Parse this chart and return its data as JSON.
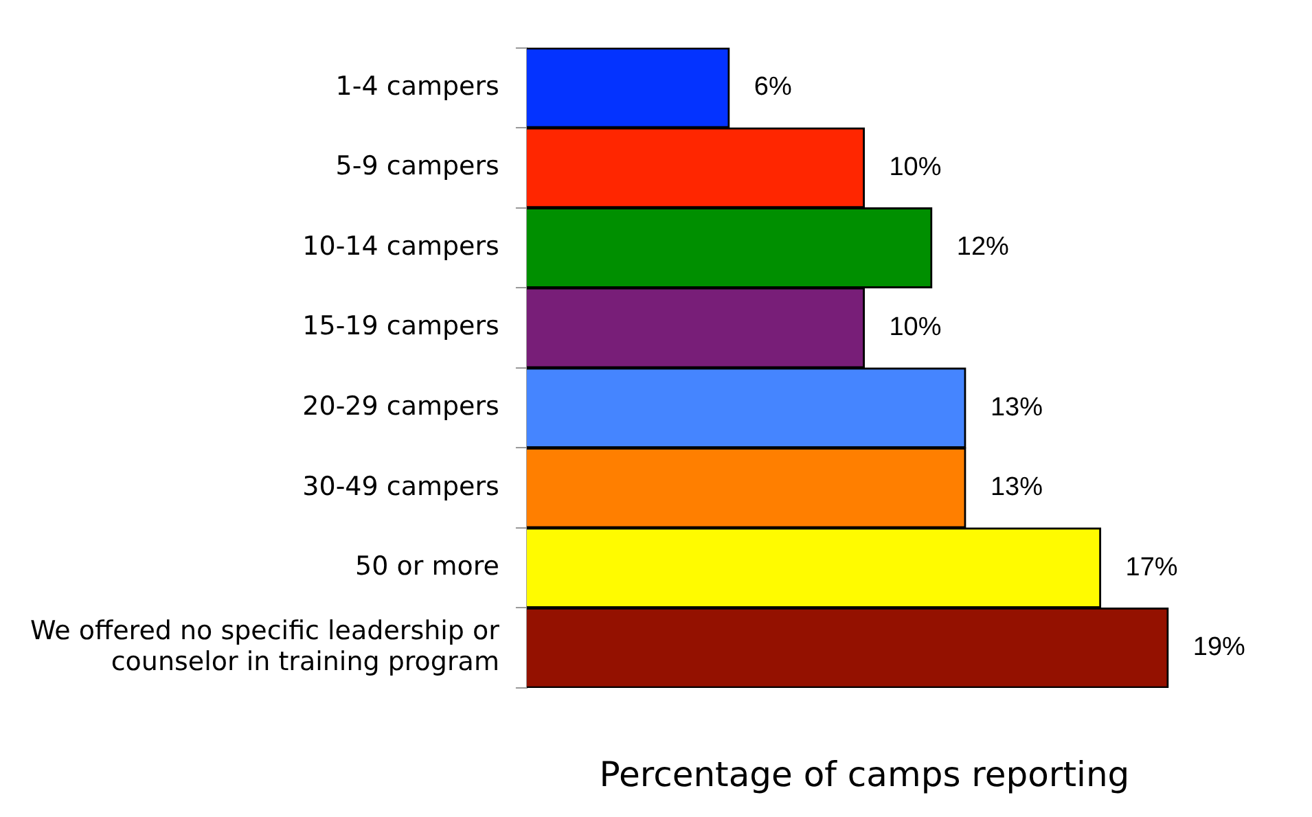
{
  "chart_data": {
    "type": "bar",
    "orientation": "horizontal",
    "xlabel": "Percentage of camps reporting",
    "categories": [
      "1-4 campers",
      "5-9 campers",
      "10-14 campers",
      "15-19 campers",
      "20-29 campers",
      "30-49 campers",
      "50 or more",
      "We offered no specific leadership or counselor in training program"
    ],
    "values": [
      6,
      10,
      12,
      10,
      13,
      13,
      17,
      19
    ],
    "value_labels": [
      "6%",
      "10%",
      "12%",
      "10%",
      "13%",
      "13%",
      "17%",
      "19%"
    ],
    "colors": [
      "#0433ff",
      "#ff2600",
      "#008f00",
      "#781e78",
      "#4585ff",
      "#ff7f00",
      "#fffb00",
      "#941100"
    ],
    "grid": false,
    "legend": false
  }
}
